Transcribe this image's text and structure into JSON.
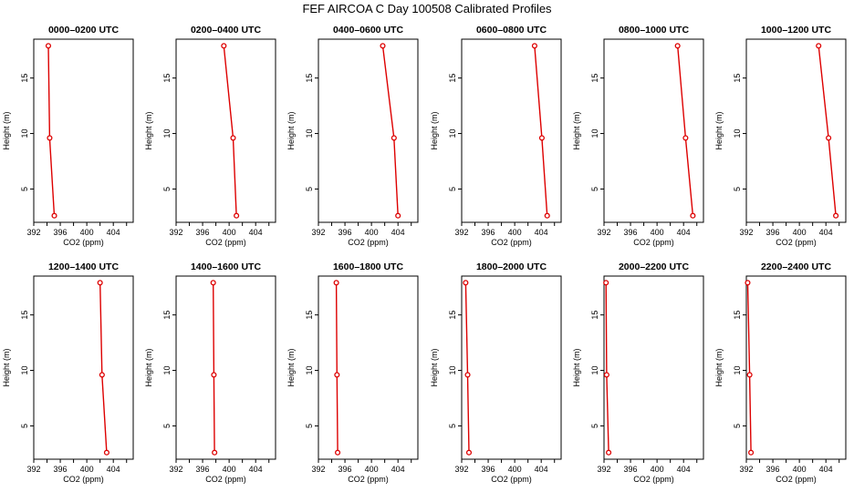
{
  "figure": {
    "title": "FEF AIRCOA C  Day 100508  Calibrated Profiles"
  },
  "colors": {
    "series": "#dd0000",
    "axis": "#000000"
  },
  "chart_data": [
    {
      "type": "line",
      "title": "0000–0200 UTC",
      "xlabel": "CO2 (ppm)",
      "ylabel": "Height (m)",
      "xlim": [
        392,
        407
      ],
      "ylim": [
        2,
        18.5
      ],
      "xticks": [
        392,
        396,
        400,
        404
      ],
      "yticks": [
        5,
        10,
        15
      ],
      "grid": false,
      "x": [
        394.2,
        394.4,
        395.1
      ],
      "y": [
        17.9,
        9.6,
        2.6
      ]
    },
    {
      "type": "line",
      "title": "0200–0400 UTC",
      "xlabel": "CO2 (ppm)",
      "ylabel": "Height (m)",
      "xlim": [
        392,
        407
      ],
      "ylim": [
        2,
        18.5
      ],
      "xticks": [
        392,
        396,
        400,
        404
      ],
      "yticks": [
        5,
        10,
        15
      ],
      "grid": false,
      "x": [
        399.2,
        400.6,
        401.1
      ],
      "y": [
        17.9,
        9.6,
        2.6
      ]
    },
    {
      "type": "line",
      "title": "0400–0600 UTC",
      "xlabel": "CO2 (ppm)",
      "ylabel": "Height (m)",
      "xlim": [
        392,
        407
      ],
      "ylim": [
        2,
        18.5
      ],
      "xticks": [
        392,
        396,
        400,
        404
      ],
      "yticks": [
        5,
        10,
        15
      ],
      "grid": false,
      "x": [
        401.7,
        403.4,
        404.0
      ],
      "y": [
        17.9,
        9.6,
        2.6
      ]
    },
    {
      "type": "line",
      "title": "0600–0800 UTC",
      "xlabel": "CO2 (ppm)",
      "ylabel": "Height (m)",
      "xlim": [
        392,
        407
      ],
      "ylim": [
        2,
        18.5
      ],
      "xticks": [
        392,
        396,
        400,
        404
      ],
      "yticks": [
        5,
        10,
        15
      ],
      "grid": false,
      "x": [
        403.0,
        404.1,
        404.9
      ],
      "y": [
        17.9,
        9.6,
        2.6
      ]
    },
    {
      "type": "line",
      "title": "0800–1000 UTC",
      "xlabel": "CO2 (ppm)",
      "ylabel": "Height (m)",
      "xlim": [
        392,
        407
      ],
      "ylim": [
        2,
        18.5
      ],
      "xticks": [
        392,
        396,
        400,
        404
      ],
      "yticks": [
        5,
        10,
        15
      ],
      "grid": false,
      "x": [
        403.1,
        404.3,
        405.4
      ],
      "y": [
        17.9,
        9.6,
        2.6
      ]
    },
    {
      "type": "line",
      "title": "1000–1200 UTC",
      "xlabel": "CO2 (ppm)",
      "ylabel": "Height (m)",
      "xlim": [
        392,
        407
      ],
      "ylim": [
        2,
        18.5
      ],
      "xticks": [
        392,
        396,
        400,
        404
      ],
      "yticks": [
        5,
        10,
        15
      ],
      "grid": false,
      "x": [
        402.9,
        404.4,
        405.5
      ],
      "y": [
        17.9,
        9.6,
        2.6
      ]
    },
    {
      "type": "line",
      "title": "1200–1400 UTC",
      "xlabel": "CO2 (ppm)",
      "ylabel": "Height (m)",
      "xlim": [
        392,
        407
      ],
      "ylim": [
        2,
        18.5
      ],
      "xticks": [
        392,
        396,
        400,
        404
      ],
      "yticks": [
        5,
        10,
        15
      ],
      "grid": false,
      "x": [
        402.0,
        402.3,
        403.0
      ],
      "y": [
        17.9,
        9.6,
        2.6
      ]
    },
    {
      "type": "line",
      "title": "1400–1600 UTC",
      "xlabel": "CO2 (ppm)",
      "ylabel": "Height (m)",
      "xlim": [
        392,
        407
      ],
      "ylim": [
        2,
        18.5
      ],
      "xticks": [
        392,
        396,
        400,
        404
      ],
      "yticks": [
        5,
        10,
        15
      ],
      "grid": false,
      "x": [
        397.6,
        397.7,
        397.8
      ],
      "y": [
        17.9,
        9.6,
        2.6
      ]
    },
    {
      "type": "line",
      "title": "1600–1800 UTC",
      "xlabel": "CO2 (ppm)",
      "ylabel": "Height (m)",
      "xlim": [
        392,
        407
      ],
      "ylim": [
        2,
        18.5
      ],
      "xticks": [
        392,
        396,
        400,
        404
      ],
      "yticks": [
        5,
        10,
        15
      ],
      "grid": false,
      "x": [
        394.7,
        394.8,
        394.9
      ],
      "y": [
        17.9,
        9.6,
        2.6
      ]
    },
    {
      "type": "line",
      "title": "1800–2000 UTC",
      "xlabel": "CO2 (ppm)",
      "ylabel": "Height (m)",
      "xlim": [
        392,
        407
      ],
      "ylim": [
        2,
        18.5
      ],
      "xticks": [
        392,
        396,
        400,
        404
      ],
      "yticks": [
        5,
        10,
        15
      ],
      "grid": false,
      "x": [
        392.6,
        392.9,
        393.1
      ],
      "y": [
        17.9,
        9.6,
        2.6
      ]
    },
    {
      "type": "line",
      "title": "2000–2200 UTC",
      "xlabel": "CO2 (ppm)",
      "ylabel": "Height (m)",
      "xlim": [
        392,
        407
      ],
      "ylim": [
        2,
        18.5
      ],
      "xticks": [
        392,
        396,
        400,
        404
      ],
      "yticks": [
        5,
        10,
        15
      ],
      "grid": false,
      "x": [
        392.3,
        392.4,
        392.7
      ],
      "y": [
        17.9,
        9.6,
        2.6
      ]
    },
    {
      "type": "line",
      "title": "2200–2400 UTC",
      "xlabel": "CO2 (ppm)",
      "ylabel": "Height (m)",
      "xlim": [
        392,
        407
      ],
      "ylim": [
        2,
        18.5
      ],
      "xticks": [
        392,
        396,
        400,
        404
      ],
      "yticks": [
        5,
        10,
        15
      ],
      "grid": false,
      "x": [
        392.2,
        392.5,
        392.7
      ],
      "y": [
        17.9,
        9.6,
        2.6
      ]
    }
  ]
}
